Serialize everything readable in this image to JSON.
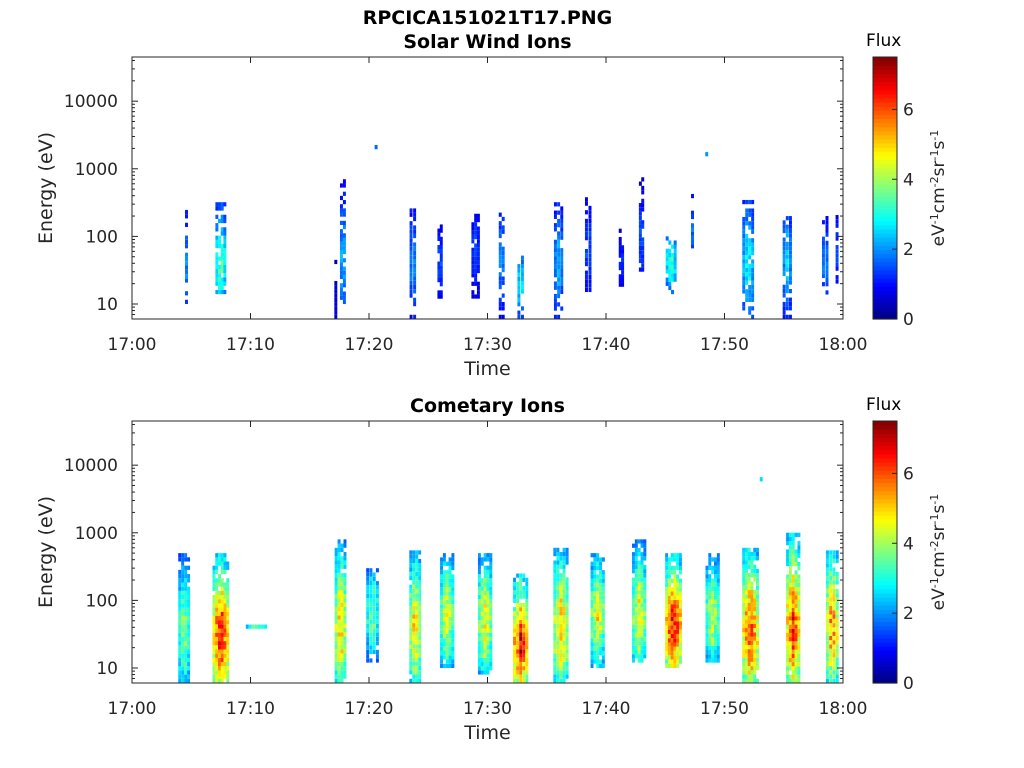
{
  "figure_title": "RPCICA151021T17.PNG",
  "chart_data": [
    {
      "type": "heatmap",
      "title": "Solar Wind Ions",
      "xlabel": "Time",
      "ylabel": "Energy (eV)",
      "x_ticks": [
        "17:00",
        "17:10",
        "17:20",
        "17:30",
        "17:40",
        "17:50",
        "18:00"
      ],
      "xlim": [
        "17:00",
        "18:00"
      ],
      "y_scale": "log",
      "y_ticks": [
        10,
        100,
        1000,
        10000
      ],
      "y_tick_labels": [
        "10",
        "100",
        "1000",
        "10000"
      ],
      "ylim": [
        6,
        45000
      ],
      "colorbar": {
        "title": "Flux",
        "label": "eV-1cm-2sr-1s-1",
        "range": [
          0,
          7.5
        ],
        "ticks": [
          0,
          2,
          4,
          6
        ],
        "tick_labels": [
          "0",
          "2",
          "4",
          "6"
        ],
        "colormap": "jet"
      },
      "grid": false,
      "bursts": [
        {
          "t": 4.6,
          "emin": 10,
          "emax": 330,
          "epeak": 40,
          "flux": 2.0,
          "w": 0.3
        },
        {
          "t": 7.5,
          "emin": 14,
          "emax": 320,
          "epeak": 40,
          "flux": 3.8,
          "w": 0.9
        },
        {
          "t": 17.2,
          "emin": 6,
          "emax": 60,
          "epeak": 8,
          "flux": 0.7,
          "w": 0.2
        },
        {
          "t": 17.8,
          "emin": 10,
          "emax": 700,
          "epeak": 45,
          "flux": 2.6,
          "w": 0.5
        },
        {
          "t": 20.6,
          "emin": 1900,
          "emax": 2300,
          "epeak": 2100,
          "flux": 2.0,
          "w": 0.1
        },
        {
          "t": 23.7,
          "emin": 6,
          "emax": 300,
          "epeak": 40,
          "flux": 2.2,
          "w": 0.6
        },
        {
          "t": 26.0,
          "emin": 12,
          "emax": 150,
          "epeak": 40,
          "flux": 1.8,
          "w": 0.4
        },
        {
          "t": 29.0,
          "emin": 12,
          "emax": 250,
          "epeak": 60,
          "flux": 1.6,
          "w": 0.7
        },
        {
          "t": 31.2,
          "emin": 6,
          "emax": 260,
          "epeak": 45,
          "flux": 2.2,
          "w": 0.5
        },
        {
          "t": 32.8,
          "emin": 6,
          "emax": 60,
          "epeak": 20,
          "flux": 3.2,
          "w": 0.6
        },
        {
          "t": 36.0,
          "emin": 6,
          "emax": 320,
          "epeak": 40,
          "flux": 2.4,
          "w": 0.8
        },
        {
          "t": 38.5,
          "emin": 15,
          "emax": 380,
          "epeak": 60,
          "flux": 1.8,
          "w": 0.6
        },
        {
          "t": 41.3,
          "emin": 18,
          "emax": 130,
          "epeak": 40,
          "flux": 1.5,
          "w": 0.4
        },
        {
          "t": 43.0,
          "emin": 30,
          "emax": 750,
          "epeak": 90,
          "flux": 1.8,
          "w": 0.4
        },
        {
          "t": 45.5,
          "emin": 14,
          "emax": 100,
          "epeak": 40,
          "flux": 3.5,
          "w": 0.9
        },
        {
          "t": 47.3,
          "emin": 50,
          "emax": 650,
          "epeak": 120,
          "flux": 1.8,
          "w": 0.3
        },
        {
          "t": 48.5,
          "emin": 1500,
          "emax": 1800,
          "epeak": 1650,
          "flux": 2.3,
          "w": 0.1
        },
        {
          "t": 52.0,
          "emin": 6,
          "emax": 400,
          "epeak": 40,
          "flux": 3.0,
          "w": 1.0
        },
        {
          "t": 55.3,
          "emin": 6,
          "emax": 200,
          "epeak": 40,
          "flux": 2.6,
          "w": 0.8
        },
        {
          "t": 58.5,
          "emin": 12,
          "emax": 200,
          "epeak": 40,
          "flux": 2.2,
          "w": 0.6
        },
        {
          "t": 59.5,
          "emin": 20,
          "emax": 240,
          "epeak": 60,
          "flux": 1.5,
          "w": 0.3
        }
      ]
    },
    {
      "type": "heatmap",
      "title": "Cometary Ions",
      "xlabel": "Time",
      "ylabel": "Energy (eV)",
      "x_ticks": [
        "17:00",
        "17:10",
        "17:20",
        "17:30",
        "17:40",
        "17:50",
        "18:00"
      ],
      "xlim": [
        "17:00",
        "18:00"
      ],
      "y_scale": "log",
      "y_ticks": [
        10,
        100,
        1000,
        10000
      ],
      "y_tick_labels": [
        "10",
        "100",
        "1000",
        "10000"
      ],
      "ylim": [
        6,
        45000
      ],
      "colorbar": {
        "title": "Flux",
        "label": "eV-1cm-2sr-1s-1",
        "range": [
          0,
          7.5
        ],
        "ticks": [
          0,
          2,
          4,
          6
        ],
        "tick_labels": [
          "0",
          "2",
          "4",
          "6"
        ],
        "colormap": "jet"
      },
      "grid": false,
      "bursts": [
        {
          "t": 4.4,
          "emin": 6,
          "emax": 500,
          "epeak": 35,
          "flux": 4.2,
          "w": 1.0
        },
        {
          "t": 7.5,
          "emin": 6,
          "emax": 500,
          "epeak": 30,
          "flux": 6.8,
          "w": 1.4
        },
        {
          "t": 10.5,
          "emin": 38,
          "emax": 44,
          "epeak": 40,
          "flux": 3.7,
          "w": 1.8
        },
        {
          "t": 17.6,
          "emin": 6,
          "emax": 800,
          "epeak": 40,
          "flux": 5.6,
          "w": 1.0
        },
        {
          "t": 20.3,
          "emin": 12,
          "emax": 300,
          "epeak": 60,
          "flux": 4.0,
          "w": 1.1
        },
        {
          "t": 23.9,
          "emin": 6,
          "emax": 550,
          "epeak": 40,
          "flux": 5.4,
          "w": 1.0
        },
        {
          "t": 26.6,
          "emin": 10,
          "emax": 500,
          "epeak": 60,
          "flux": 4.8,
          "w": 1.2
        },
        {
          "t": 29.8,
          "emin": 8,
          "emax": 500,
          "epeak": 50,
          "flux": 5.0,
          "w": 1.2
        },
        {
          "t": 32.8,
          "emin": 6,
          "emax": 250,
          "epeak": 22,
          "flux": 6.9,
          "w": 1.3
        },
        {
          "t": 36.2,
          "emin": 6,
          "emax": 600,
          "epeak": 40,
          "flux": 5.6,
          "w": 1.3
        },
        {
          "t": 39.3,
          "emin": 10,
          "emax": 500,
          "epeak": 60,
          "flux": 5.0,
          "w": 1.2
        },
        {
          "t": 42.8,
          "emin": 12,
          "emax": 800,
          "epeak": 60,
          "flux": 5.0,
          "w": 1.2
        },
        {
          "t": 45.7,
          "emin": 10,
          "emax": 500,
          "epeak": 40,
          "flux": 7.0,
          "w": 1.4
        },
        {
          "t": 49.0,
          "emin": 12,
          "emax": 500,
          "epeak": 60,
          "flux": 4.6,
          "w": 1.2
        },
        {
          "t": 52.2,
          "emin": 6,
          "emax": 600,
          "epeak": 35,
          "flux": 6.5,
          "w": 1.4
        },
        {
          "t": 53.1,
          "emin": 5800,
          "emax": 6600,
          "epeak": 6200,
          "flux": 2.8,
          "w": 0.1
        },
        {
          "t": 55.8,
          "emin": 6,
          "emax": 1000,
          "epeak": 40,
          "flux": 6.6,
          "w": 1.2
        },
        {
          "t": 59.1,
          "emin": 6,
          "emax": 550,
          "epeak": 40,
          "flux": 6.0,
          "w": 1.1
        }
      ]
    }
  ]
}
